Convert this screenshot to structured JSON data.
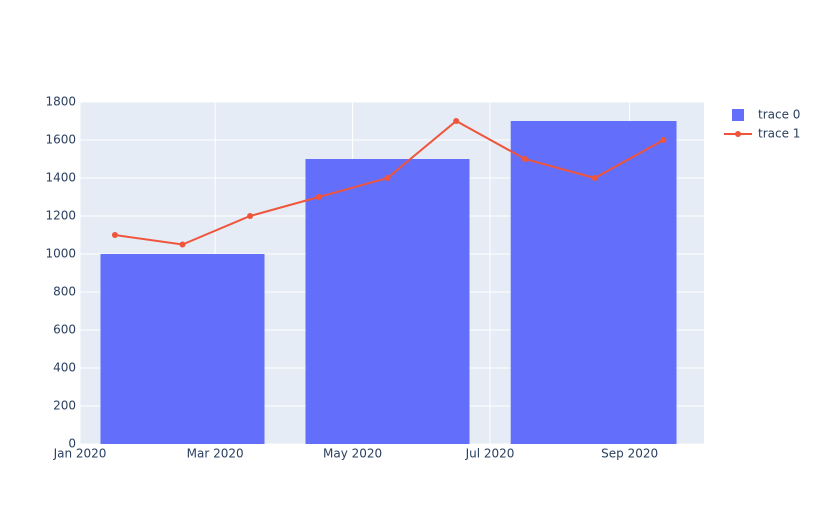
{
  "chart_data": {
    "type": "bar+line",
    "series": [
      {
        "name": "trace 0",
        "type": "bar",
        "color": "#636efa",
        "x": [
          "2020-01",
          "2020-04",
          "2020-07"
        ],
        "values": [
          1000,
          1500,
          1700
        ]
      },
      {
        "name": "trace 1",
        "type": "line",
        "color": "#ef553b",
        "x": [
          "2020-01",
          "2020-02",
          "2020-03",
          "2020-04",
          "2020-05",
          "2020-06",
          "2020-07",
          "2020-08",
          "2020-09"
        ],
        "values": [
          1100,
          1050,
          1200,
          1300,
          1400,
          1700,
          1500,
          1400,
          1600
        ]
      }
    ],
    "xlim": [
      "2020-01-01",
      "2020-10-04"
    ],
    "xticks": [
      {
        "value": "2020-01-01",
        "label": "Jan 2020"
      },
      {
        "value": "2020-03-01",
        "label": "Mar 2020"
      },
      {
        "value": "2020-05-01",
        "label": "May 2020"
      },
      {
        "value": "2020-07-01",
        "label": "Jul 2020"
      },
      {
        "value": "2020-09-01",
        "label": "Sep 2020"
      }
    ],
    "ylim": [
      0,
      1800
    ],
    "yticks": [
      0,
      200,
      400,
      600,
      800,
      1000,
      1200,
      1400,
      1600,
      1800
    ],
    "grid": true,
    "legend": "top-right"
  }
}
